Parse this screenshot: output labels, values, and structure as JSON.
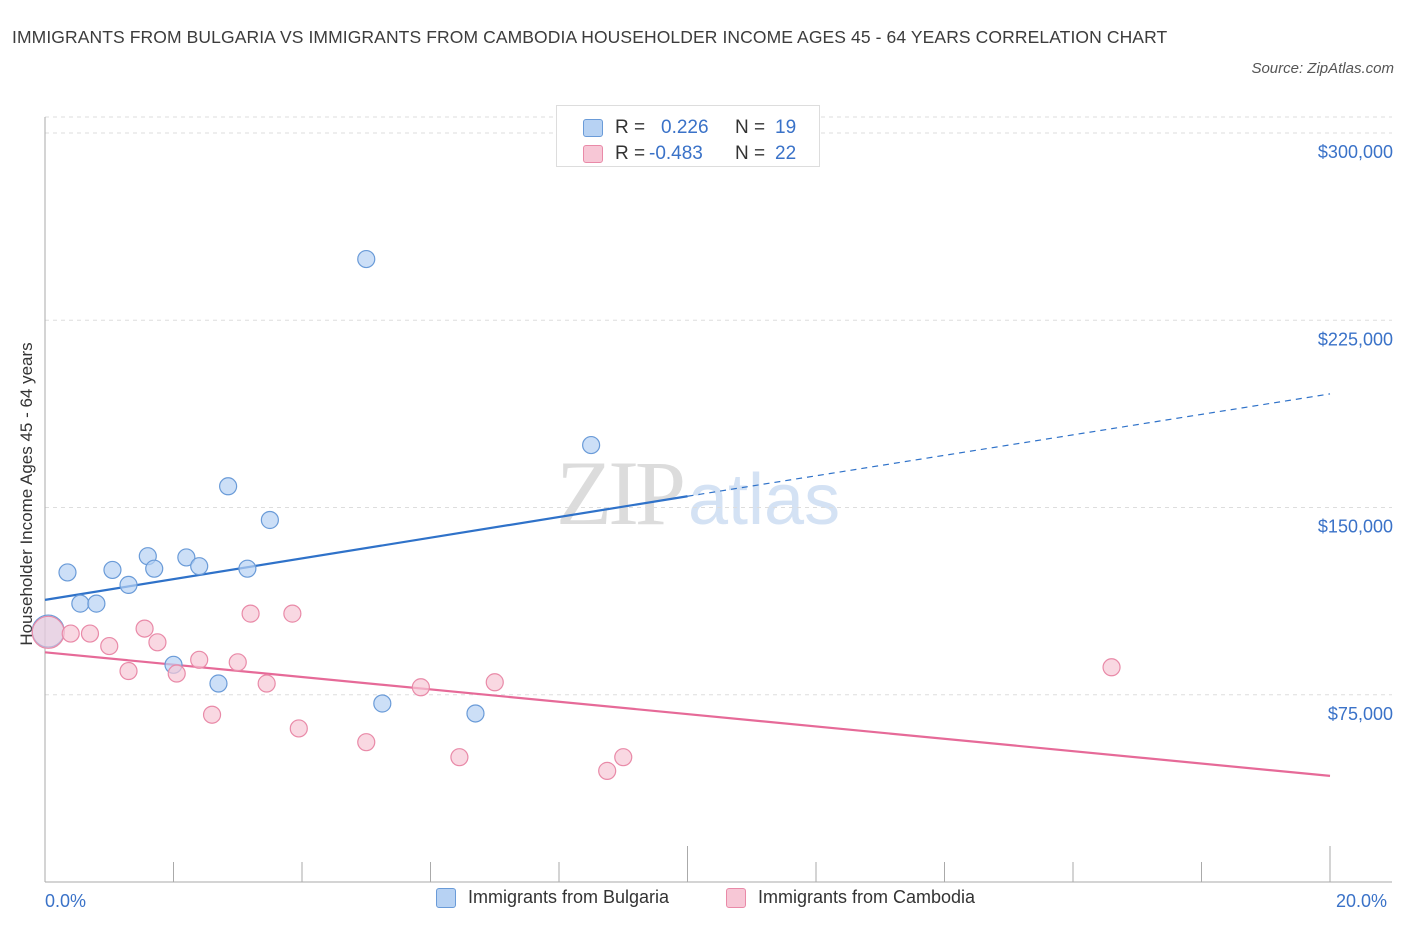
{
  "title": "IMMIGRANTS FROM BULGARIA VS IMMIGRANTS FROM CAMBODIA HOUSEHOLDER INCOME AGES 45 - 64 YEARS CORRELATION CHART",
  "source": "Source: ZipAtlas.com",
  "watermark": {
    "zip": "ZIP",
    "atlas": "atlas"
  },
  "colors": {
    "bulgaria_fill": "#b7d2f3",
    "bulgaria_stroke": "#6a9bd8",
    "bulgaria_line": "#2f72c9",
    "cambodia_fill": "#f7c7d6",
    "cambodia_stroke": "#e98aa8",
    "cambodia_line": "#e66a98",
    "axis_label": "#3a72c8",
    "grid": "#dddddd"
  },
  "legend_top": {
    "rows": [
      {
        "r_label": "R =",
        "r_value": "0.226",
        "n_label": "N =",
        "n_value": "19"
      },
      {
        "r_label": "R =",
        "r_value": "-0.483",
        "n_label": "N =",
        "n_value": "22"
      }
    ]
  },
  "chart_data": {
    "type": "scatter",
    "title": "IMMIGRANTS FROM BULGARIA VS IMMIGRANTS FROM CAMBODIA HOUSEHOLDER INCOME AGES 45 - 64 YEARS CORRELATION CHART",
    "xlabel": "",
    "ylabel": "Householder Income Ages 45 - 64 years",
    "xlim": [
      0,
      20
    ],
    "ylim": [
      0,
      300000
    ],
    "x_tick_labels": [
      "0.0%",
      "20.0%"
    ],
    "y_tick_labels": [
      "$75,000",
      "$150,000",
      "$225,000",
      "$300,000"
    ],
    "y_ticks": [
      75000,
      150000,
      225000,
      300000
    ],
    "grid": true,
    "legend_placement": "bottom",
    "series": [
      {
        "name": "Immigrants from Bulgaria",
        "R": 0.226,
        "N": 19,
        "points": [
          {
            "x": 0.05,
            "y": 100500,
            "big": true
          },
          {
            "x": 0.35,
            "y": 124000
          },
          {
            "x": 0.55,
            "y": 111500
          },
          {
            "x": 0.8,
            "y": 111500
          },
          {
            "x": 1.05,
            "y": 125000
          },
          {
            "x": 1.3,
            "y": 119000
          },
          {
            "x": 1.6,
            "y": 130500
          },
          {
            "x": 1.7,
            "y": 125500
          },
          {
            "x": 2.0,
            "y": 87000
          },
          {
            "x": 2.2,
            "y": 130000
          },
          {
            "x": 2.4,
            "y": 126500
          },
          {
            "x": 2.7,
            "y": 79500
          },
          {
            "x": 2.85,
            "y": 158500
          },
          {
            "x": 3.15,
            "y": 125500
          },
          {
            "x": 3.5,
            "y": 145000
          },
          {
            "x": 5.0,
            "y": 249500
          },
          {
            "x": 5.25,
            "y": 71500
          },
          {
            "x": 6.7,
            "y": 67500
          },
          {
            "x": 8.5,
            "y": 175000
          }
        ],
        "trend": {
          "x0": 0,
          "y0": 113000,
          "x1": 10,
          "y1": 154500,
          "dashed_to_x": 20,
          "dashed_to_y": 195500
        }
      },
      {
        "name": "Immigrants from Cambodia",
        "R": -0.483,
        "N": 22,
        "points": [
          {
            "x": 0.05,
            "y": 100000,
            "big": true
          },
          {
            "x": 0.4,
            "y": 99500
          },
          {
            "x": 0.7,
            "y": 99500
          },
          {
            "x": 1.0,
            "y": 94500
          },
          {
            "x": 1.3,
            "y": 84500
          },
          {
            "x": 1.55,
            "y": 101500
          },
          {
            "x": 1.75,
            "y": 96000
          },
          {
            "x": 2.05,
            "y": 83500
          },
          {
            "x": 2.4,
            "y": 89000
          },
          {
            "x": 2.6,
            "y": 67000
          },
          {
            "x": 3.0,
            "y": 88000
          },
          {
            "x": 3.2,
            "y": 107500
          },
          {
            "x": 3.45,
            "y": 79500
          },
          {
            "x": 3.85,
            "y": 107500
          },
          {
            "x": 3.95,
            "y": 61500
          },
          {
            "x": 5.0,
            "y": 56000
          },
          {
            "x": 5.85,
            "y": 78000
          },
          {
            "x": 6.45,
            "y": 50000
          },
          {
            "x": 7.0,
            "y": 80000
          },
          {
            "x": 8.75,
            "y": 44500
          },
          {
            "x": 9.0,
            "y": 50000
          },
          {
            "x": 16.6,
            "y": 86000
          }
        ],
        "trend": {
          "x0": 0,
          "y0": 92000,
          "x1": 20,
          "y1": 42500
        }
      }
    ]
  }
}
